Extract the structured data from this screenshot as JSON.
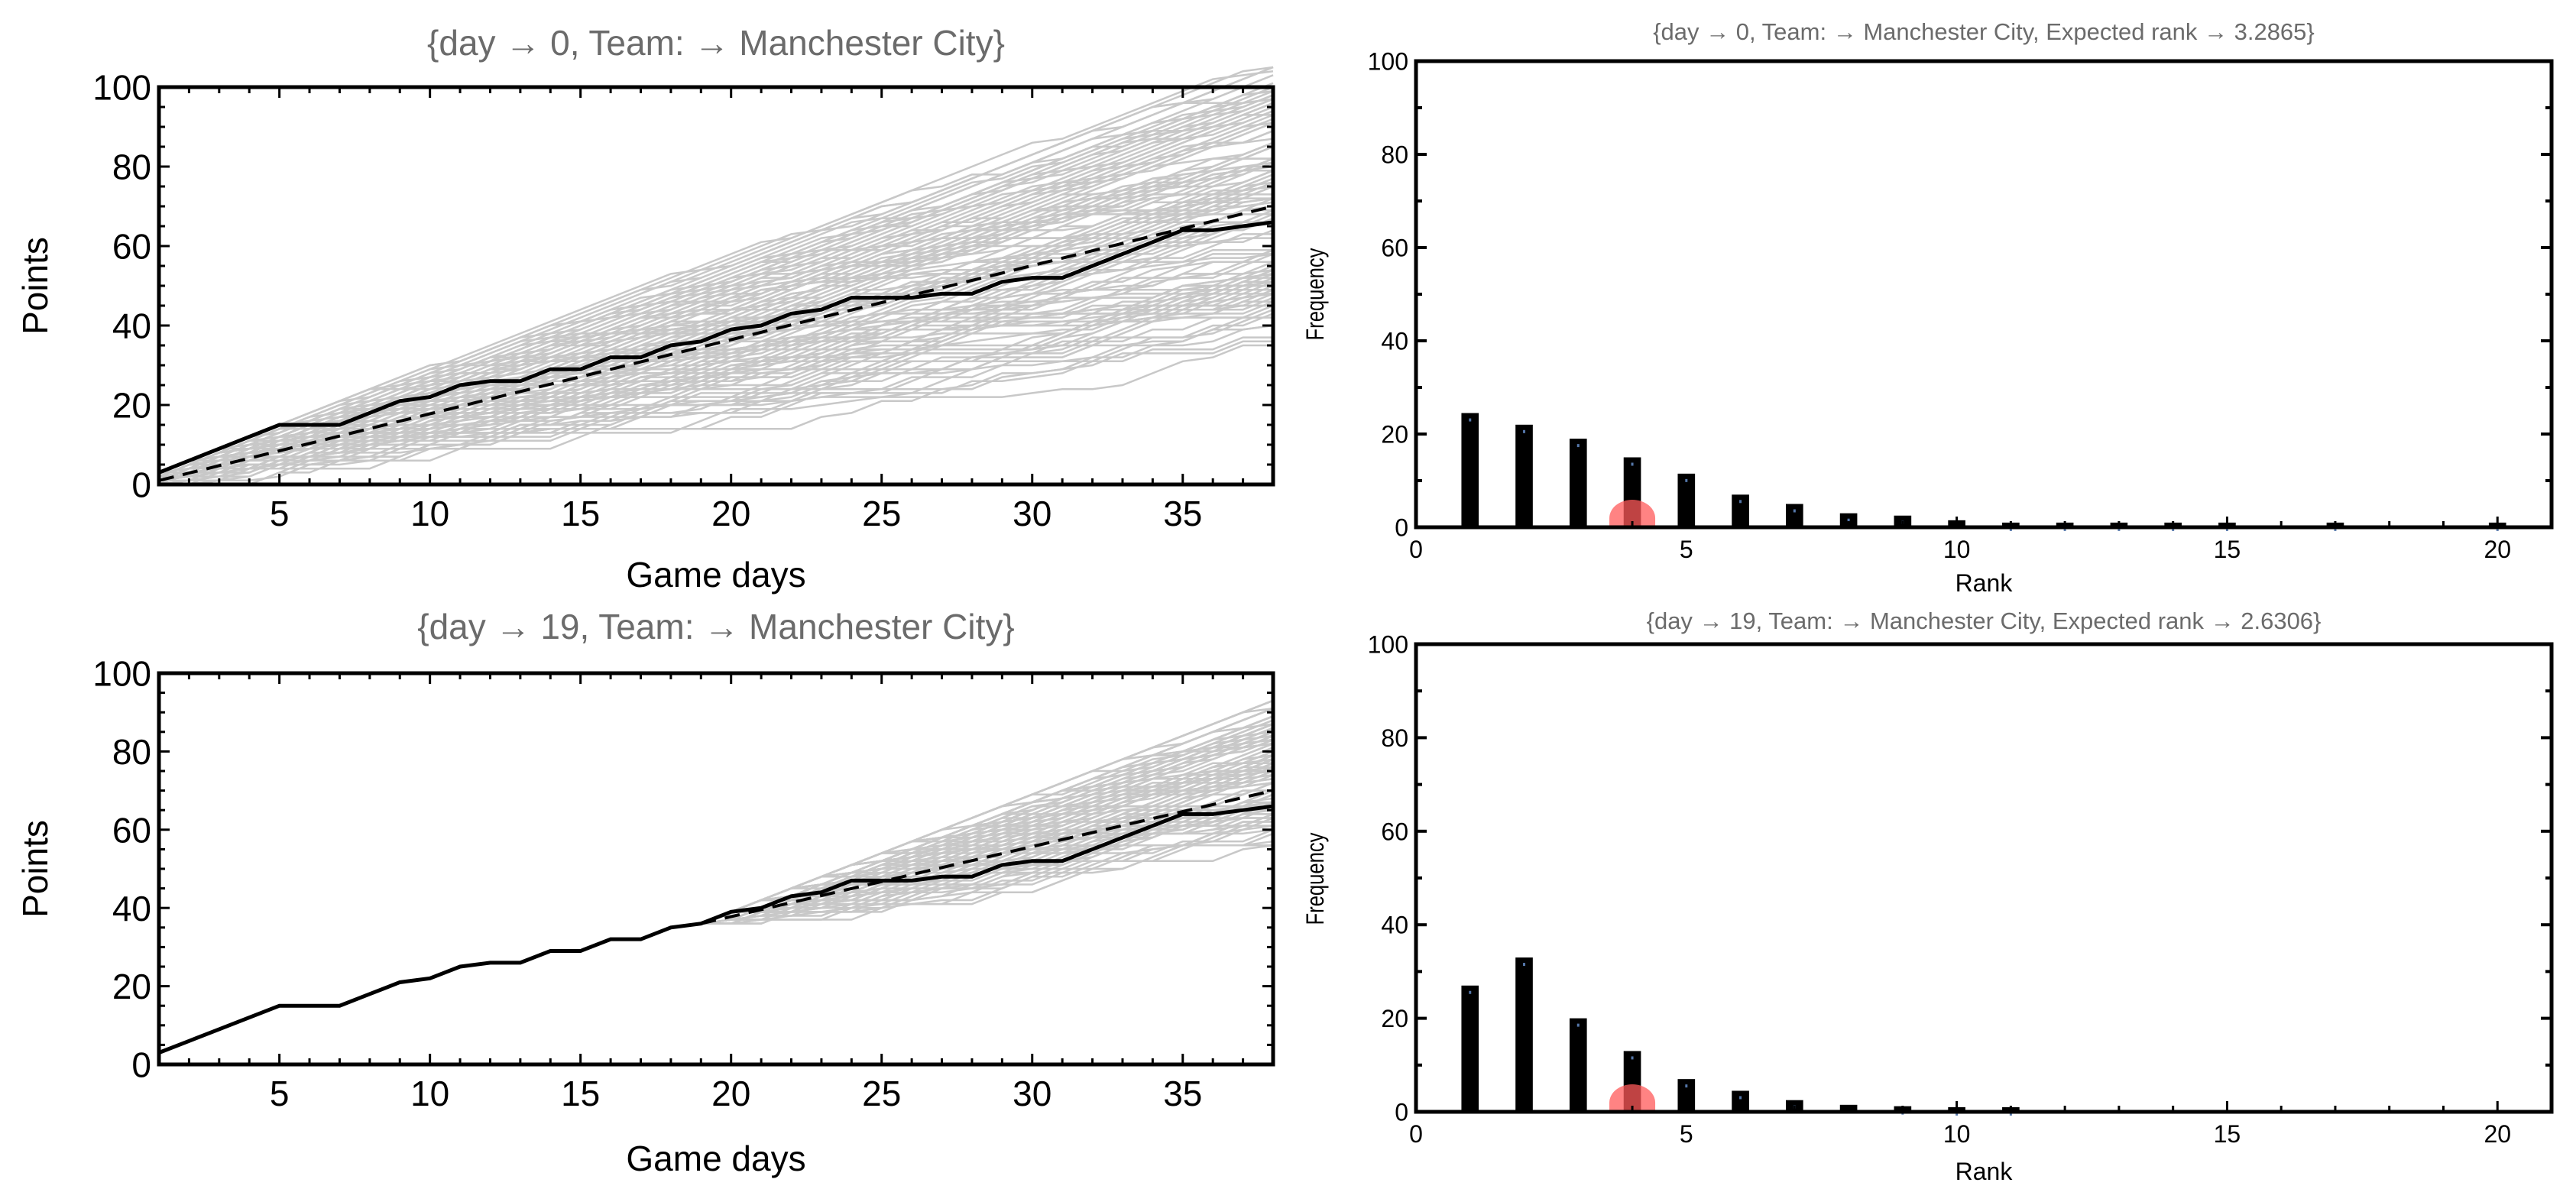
{
  "chart_data": [
    {
      "type": "line",
      "title": "{day → 0, Team: → Manchester City}",
      "xlabel": "Game days",
      "ylabel": "Points",
      "xlim": [
        1,
        38
      ],
      "ylim": [
        0,
        100
      ],
      "xticks": [
        5,
        10,
        15,
        20,
        25,
        30,
        35
      ],
      "yticks": [
        0,
        20,
        40,
        60,
        80,
        100
      ],
      "simulation_start_day": 0,
      "simulated_band_final_range": [
        37,
        97
      ],
      "series": [
        {
          "name": "actual",
          "style": "solid",
          "x": [
            1,
            2,
            3,
            4,
            5,
            6,
            7,
            8,
            9,
            10,
            11,
            12,
            13,
            14,
            15,
            16,
            17,
            18,
            19,
            20,
            21,
            22,
            23,
            24,
            25,
            26,
            27,
            28,
            29,
            30,
            31,
            32,
            33,
            34,
            35,
            36,
            37,
            38
          ],
          "values": [
            3,
            6,
            9,
            12,
            15,
            15,
            15,
            18,
            21,
            22,
            25,
            26,
            26,
            29,
            29,
            32,
            32,
            35,
            36,
            39,
            40,
            43,
            44,
            47,
            47,
            47,
            48,
            48,
            51,
            52,
            52,
            55,
            58,
            61,
            64,
            64,
            65,
            66
          ]
        },
        {
          "name": "expected",
          "style": "dashed",
          "x": [
            1,
            38
          ],
          "values": [
            1,
            70
          ]
        }
      ]
    },
    {
      "type": "bar",
      "title": "{day → 0, Team: → Manchester City,   Expected rank → 3.2865}",
      "xlabel": "Rank",
      "ylabel": "Frequency",
      "xlim": [
        0,
        21
      ],
      "ylim": [
        0,
        100
      ],
      "xticks": [
        0,
        5,
        10,
        15,
        20
      ],
      "yticks": [
        0,
        20,
        40,
        60,
        80,
        100
      ],
      "categories": [
        1,
        2,
        3,
        4,
        5,
        6,
        7,
        8,
        9,
        10,
        11,
        12,
        13,
        14,
        15,
        16,
        17,
        18,
        19,
        20
      ],
      "values": [
        24.5,
        22,
        19,
        15,
        11.5,
        7,
        5,
        3,
        2.5,
        1.5,
        1,
        1,
        1,
        1,
        1,
        0,
        1,
        0,
        0,
        1
      ],
      "highlight_rank": 4
    },
    {
      "type": "line",
      "title": "{day → 19, Team: → Manchester City}",
      "xlabel": "Game days",
      "ylabel": "Points",
      "xlim": [
        1,
        38
      ],
      "ylim": [
        0,
        100
      ],
      "xticks": [
        5,
        10,
        15,
        20,
        25,
        30,
        35
      ],
      "yticks": [
        0,
        20,
        40,
        60,
        80,
        100
      ],
      "simulation_start_day": 19,
      "simulated_band_final_range": [
        57,
        90
      ],
      "series": [
        {
          "name": "actual",
          "style": "solid",
          "x": [
            1,
            2,
            3,
            4,
            5,
            6,
            7,
            8,
            9,
            10,
            11,
            12,
            13,
            14,
            15,
            16,
            17,
            18,
            19,
            20,
            21,
            22,
            23,
            24,
            25,
            26,
            27,
            28,
            29,
            30,
            31,
            32,
            33,
            34,
            35,
            36,
            37,
            38
          ],
          "values": [
            3,
            6,
            9,
            12,
            15,
            15,
            15,
            18,
            21,
            22,
            25,
            26,
            26,
            29,
            29,
            32,
            32,
            35,
            36,
            39,
            40,
            43,
            44,
            47,
            47,
            47,
            48,
            48,
            51,
            52,
            52,
            55,
            58,
            61,
            64,
            64,
            65,
            66
          ]
        },
        {
          "name": "expected",
          "style": "dashed",
          "x": [
            19,
            38
          ],
          "values": [
            36,
            70
          ]
        }
      ]
    },
    {
      "type": "bar",
      "title": "{day → 19, Team: → Manchester City,   Expected rank → 2.6306}",
      "xlabel": "Rank",
      "ylabel": "Frequency",
      "xlim": [
        0,
        21
      ],
      "ylim": [
        0,
        100
      ],
      "xticks": [
        0,
        5,
        10,
        15,
        20
      ],
      "yticks": [
        0,
        20,
        40,
        60,
        80,
        100
      ],
      "categories": [
        1,
        2,
        3,
        4,
        5,
        6,
        7,
        8,
        9,
        10,
        11,
        12,
        13,
        14,
        15,
        16,
        17,
        18,
        19,
        20
      ],
      "values": [
        27,
        33,
        20,
        13,
        7,
        4.5,
        2.5,
        1.5,
        1.2,
        1,
        1,
        0,
        0,
        0,
        0,
        0,
        0,
        0,
        0,
        0
      ],
      "highlight_rank": 4
    }
  ],
  "colors": {
    "simulation": "#c8c8c8",
    "line": "#000000",
    "highlight": "#ff5a5a",
    "title": "#6b6b6b"
  }
}
